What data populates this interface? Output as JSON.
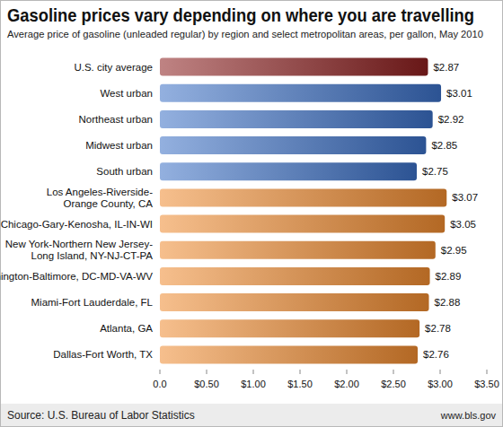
{
  "chart_data": {
    "type": "bar",
    "orientation": "horizontal",
    "title": "Gasoline prices vary depending on where you are travelling",
    "subtitle": "Average price of gasoline (unleaded regular) by region and select metropolitan areas, per gallon, May 2010",
    "categories": [
      "U.S. city average",
      "West urban",
      "Northeast urban",
      "Midwest urban",
      "South urban",
      "Los Angeles-Riverside-\nOrange County, CA",
      "Chicago-Gary-Kenosha, IL-IN-WI",
      "New York-Northern New Jersey-\nLong Island, NY-NJ-CT-PA",
      "Washington-Baltimore, DC-MD-VA-WV",
      "Miami-Fort Lauderdale, FL",
      "Atlanta, GA",
      "Dallas-Fort Worth, TX"
    ],
    "values": [
      2.87,
      3.01,
      2.92,
      2.85,
      2.75,
      3.07,
      3.05,
      2.95,
      2.89,
      2.88,
      2.78,
      2.76
    ],
    "value_labels": [
      "$2.87",
      "$3.01",
      "$2.92",
      "$2.85",
      "$2.75",
      "$3.07",
      "$3.05",
      "$2.95",
      "$2.89",
      "$2.88",
      "$2.78",
      "$2.76"
    ],
    "colors": [
      "#8b1e1e",
      "#3a6fc4",
      "#3a6fc4",
      "#3a6fc4",
      "#3a6fc4",
      "#ef8a30",
      "#ef8a30",
      "#ef8a30",
      "#ef8a30",
      "#ef8a30",
      "#ef8a30",
      "#ef8a30"
    ],
    "data_labels": true,
    "grid": false,
    "xlim": [
      0,
      3.5
    ],
    "xticks": [
      {
        "value": 0,
        "label": "0.0"
      },
      {
        "value": 0.5,
        "label": "$0.50"
      },
      {
        "value": 1,
        "label": "$1.00"
      },
      {
        "value": 1.5,
        "label": "$1.50"
      },
      {
        "value": 2,
        "label": "$2.00"
      },
      {
        "value": 2.5,
        "label": "$2.50"
      },
      {
        "value": 3,
        "label": "$3.00"
      },
      {
        "value": 3.5,
        "label": "$3.50"
      }
    ],
    "annotations": [
      "Source: U.S. Bureau of Labor Statistics",
      "www.bls.gov"
    ]
  }
}
